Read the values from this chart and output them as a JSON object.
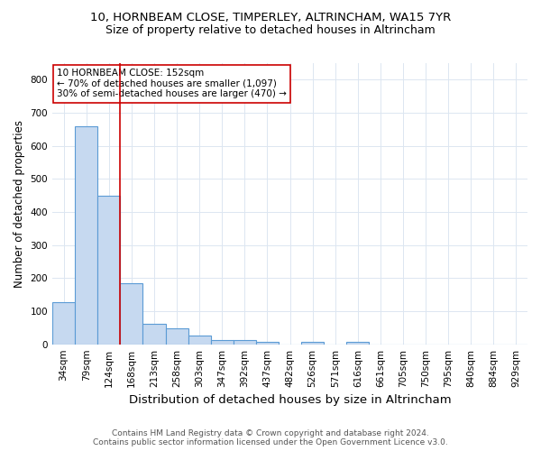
{
  "title1": "10, HORNBEAM CLOSE, TIMPERLEY, ALTRINCHAM, WA15 7YR",
  "title2": "Size of property relative to detached houses in Altrincham",
  "xlabel": "Distribution of detached houses by size in Altrincham",
  "ylabel": "Number of detached properties",
  "categories": [
    "34sqm",
    "79sqm",
    "124sqm",
    "168sqm",
    "213sqm",
    "258sqm",
    "303sqm",
    "347sqm",
    "392sqm",
    "437sqm",
    "482sqm",
    "526sqm",
    "571sqm",
    "616sqm",
    "661sqm",
    "705sqm",
    "750sqm",
    "795sqm",
    "840sqm",
    "884sqm",
    "929sqm"
  ],
  "values": [
    128,
    660,
    450,
    185,
    63,
    47,
    27,
    13,
    13,
    8,
    0,
    8,
    0,
    8,
    0,
    0,
    0,
    0,
    0,
    0,
    0
  ],
  "bar_color": "#c6d9f0",
  "bar_edge_color": "#5b9bd5",
  "bar_edge_width": 0.8,
  "red_line_x": 2.5,
  "red_line_color": "#cc0000",
  "annotation_text": "10 HORNBEAM CLOSE: 152sqm\n← 70% of detached houses are smaller (1,097)\n30% of semi-detached houses are larger (470) →",
  "annotation_box_color": "#ffffff",
  "annotation_box_edge_color": "#cc0000",
  "ylim": [
    0,
    850
  ],
  "yticks": [
    0,
    100,
    200,
    300,
    400,
    500,
    600,
    700,
    800
  ],
  "grid_color": "#dce6f1",
  "bg_color": "#ffffff",
  "footnote": "Contains HM Land Registry data © Crown copyright and database right 2024.\nContains public sector information licensed under the Open Government Licence v3.0.",
  "title1_fontsize": 9.5,
  "title2_fontsize": 9,
  "xlabel_fontsize": 9.5,
  "ylabel_fontsize": 8.5,
  "tick_fontsize": 7.5,
  "annotation_fontsize": 7.5,
  "footnote_fontsize": 6.5
}
